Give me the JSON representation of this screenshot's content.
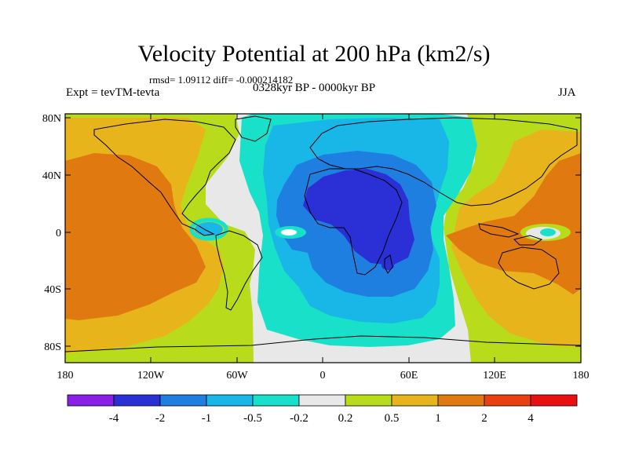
{
  "title": "Velocity Potential at 200 hPa (km2/s)",
  "stats": "rmsd= 1.09112 diff= -0.000214182",
  "experiment": "Expt = tevTM-tevta",
  "period": "0328kyr BP - 0000kyr BP",
  "season": "JJA",
  "lat_labels": [
    "80N",
    "40N",
    "0",
    "40S",
    "80S"
  ],
  "lon_labels": [
    "180",
    "120W",
    "60W",
    "0",
    "60E",
    "120E",
    "180"
  ],
  "colorbar": {
    "colors": [
      "#8a1fe8",
      "#2b2fd6",
      "#1f7fe0",
      "#19b6e8",
      "#19e0c8",
      "#e8e8e8",
      "#b8dc1c",
      "#e8b41c",
      "#e07a10",
      "#e84010",
      "#e81010"
    ],
    "labels": [
      "-4",
      "-2",
      "-1",
      "-0.5",
      "-0.2",
      "0.2",
      "0.5",
      "1",
      "2",
      "4"
    ]
  }
}
